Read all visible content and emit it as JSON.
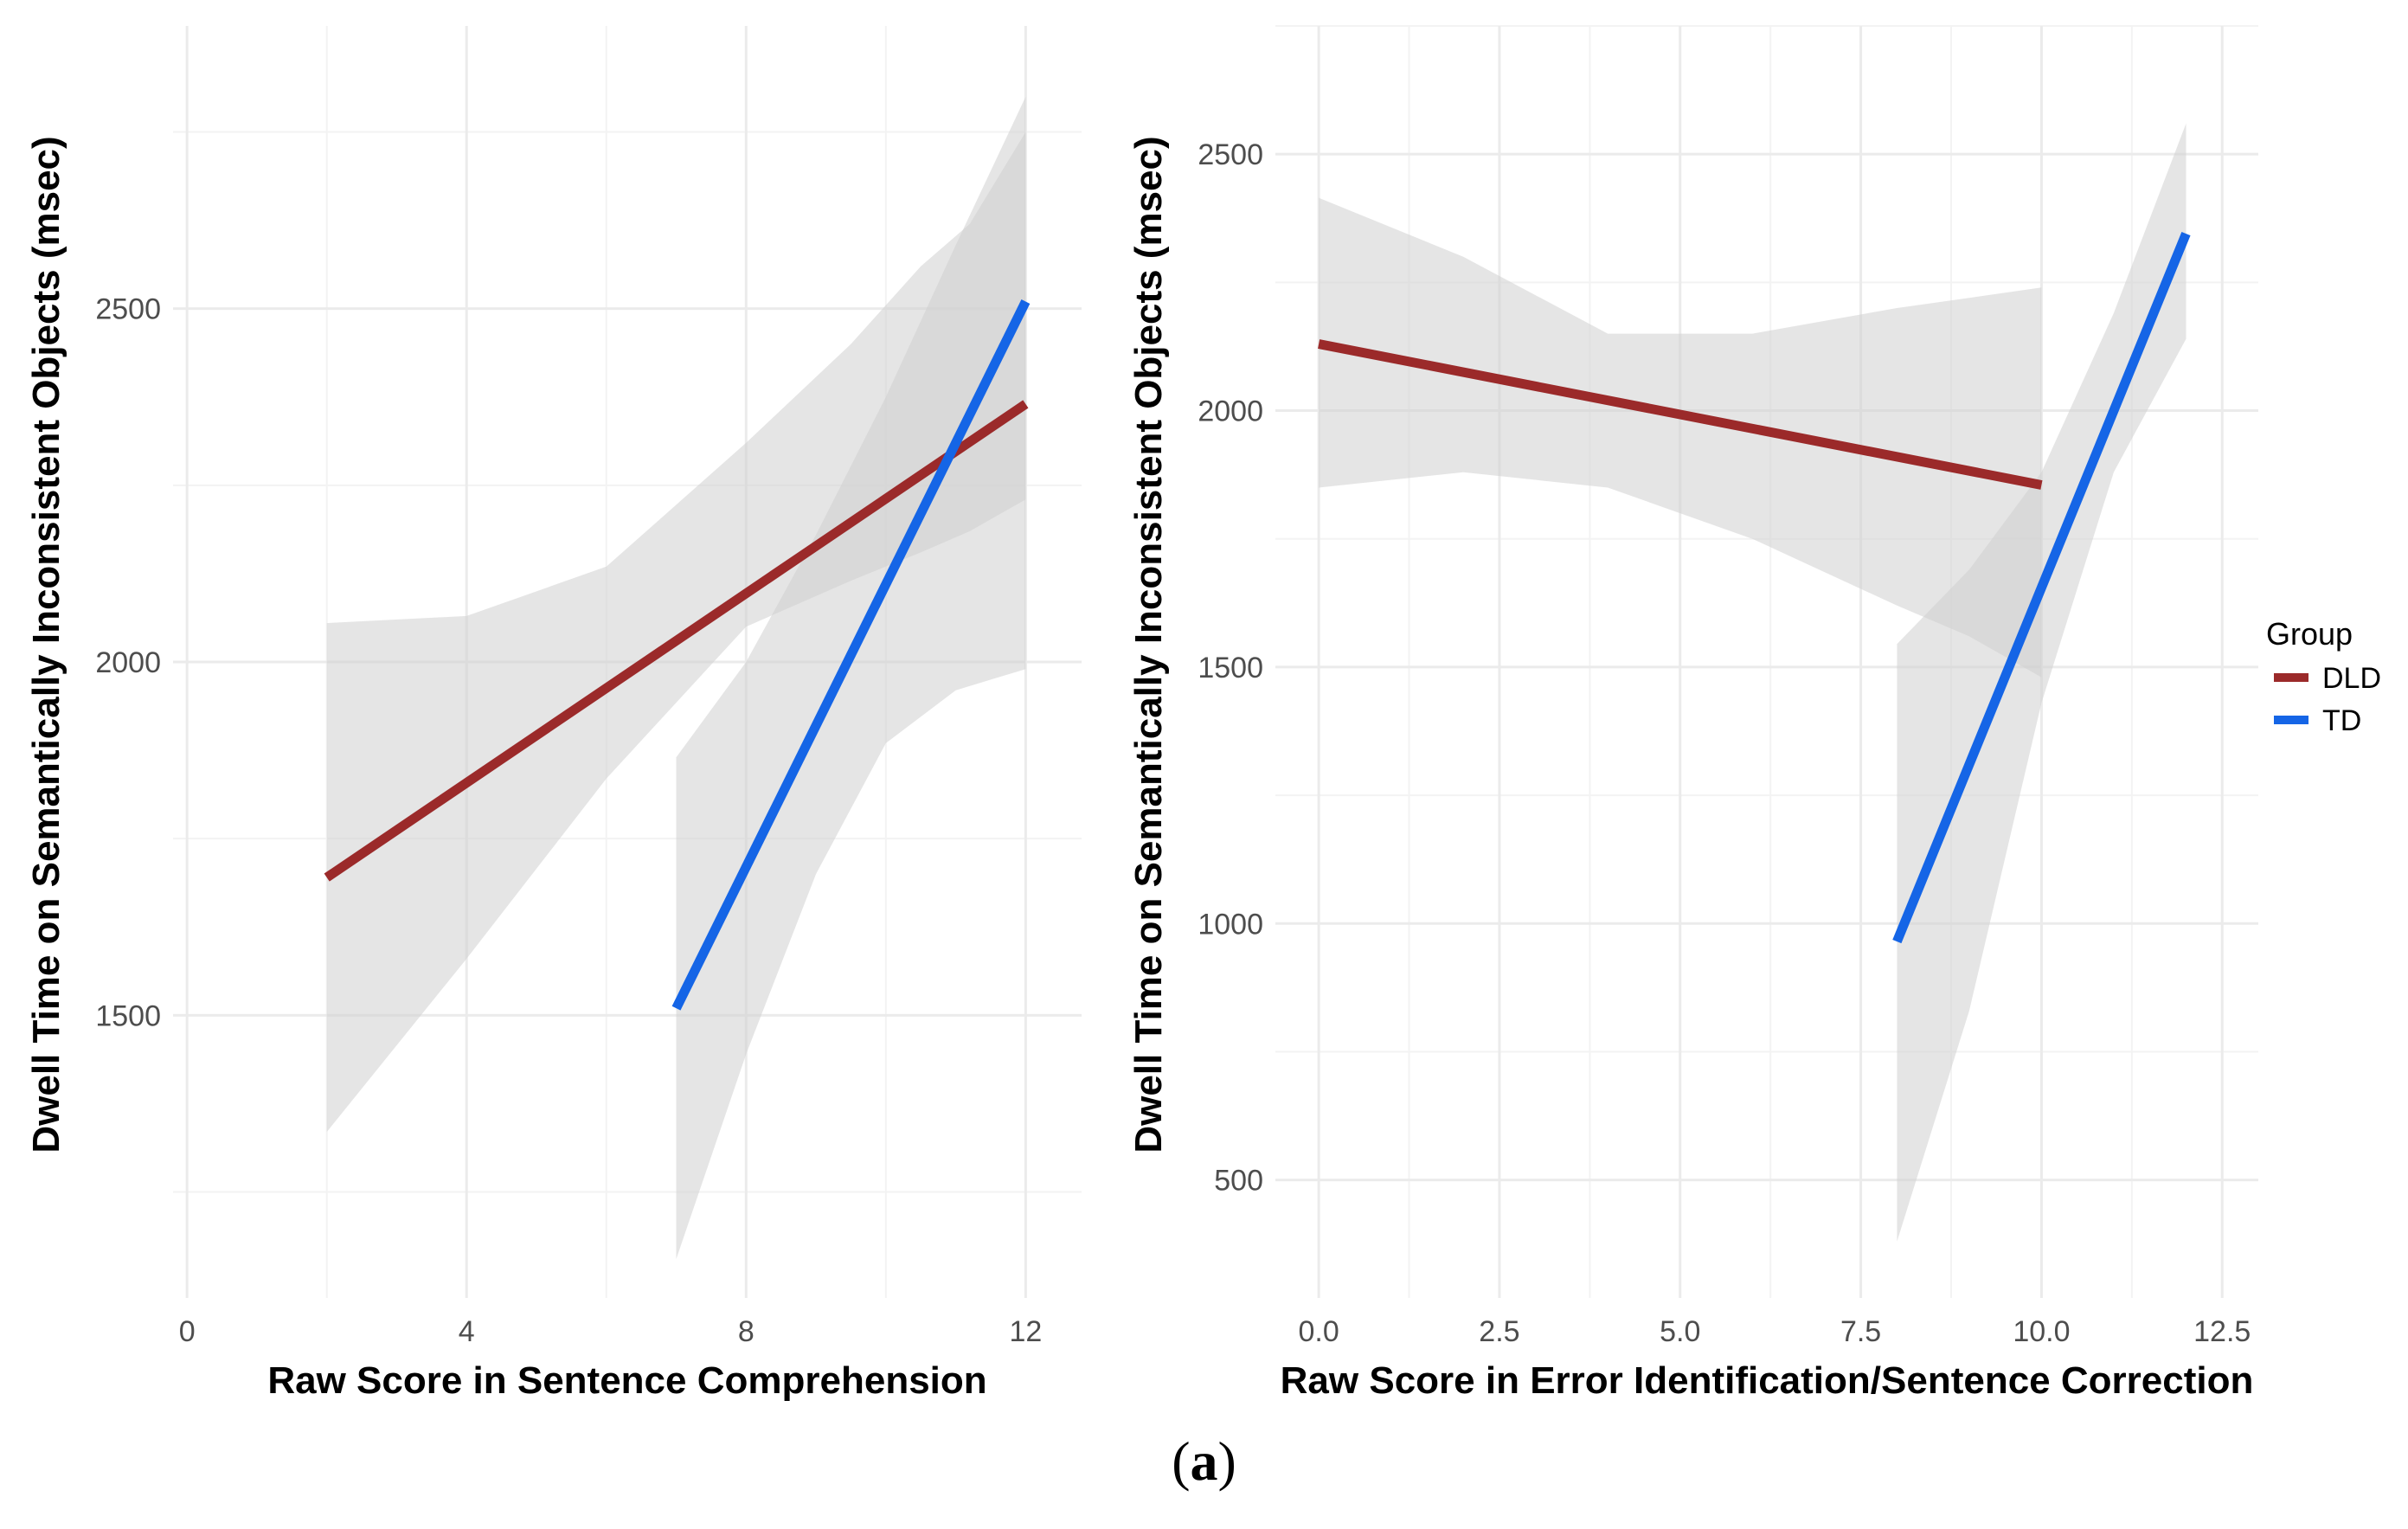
{
  "caption": {
    "open": "(",
    "letter": "a",
    "close": ")"
  },
  "colors": {
    "DLD": "#9B2A2A",
    "TD": "#1565E6",
    "ribbon": "#d9d9d9",
    "grid": "#ebebeb"
  },
  "legend": {
    "title": "Group",
    "entries": [
      {
        "label": "DLD"
      },
      {
        "label": "TD"
      }
    ]
  },
  "chart_data": [
    {
      "type": "line",
      "xlabel": "Raw Score in Sentence Comprehension",
      "ylabel": "Dwell Time on Semantically Inconsistent Objects (msec)",
      "xlim": [
        -0.2,
        12.8
      ],
      "ylim": [
        1100,
        2900
      ],
      "xticks": [
        0,
        4,
        8,
        12
      ],
      "xtick_labels": [
        "0",
        "4",
        "8",
        "12"
      ],
      "yticks": [
        1500,
        2000,
        2500
      ],
      "ytick_labels": [
        "1500",
        "2000",
        "2500"
      ],
      "series": [
        {
          "name": "DLD",
          "x": [
            2,
            12
          ],
          "y": [
            1695,
            2365
          ],
          "ci_x": [
            2,
            4,
            6,
            8,
            9.5,
            10.5,
            11.2,
            12
          ],
          "ci_low": [
            1335,
            1580,
            1835,
            2050,
            2115,
            2155,
            2185,
            2230
          ],
          "ci_high": [
            2055,
            2065,
            2135,
            2310,
            2450,
            2560,
            2620,
            2750
          ]
        },
        {
          "name": "TD",
          "x": [
            7,
            12
          ],
          "y": [
            1510,
            2510
          ],
          "ci_x": [
            7,
            8,
            9,
            10,
            11,
            12
          ],
          "ci_low": [
            1155,
            1445,
            1700,
            1885,
            1960,
            1990
          ],
          "ci_high": [
            1865,
            2000,
            2180,
            2375,
            2590,
            2800
          ]
        }
      ]
    },
    {
      "type": "line",
      "xlabel": "Raw Score in Error Identification/Sentence Correction",
      "ylabel": "Dwell Time on Semantically Inconsistent Objects (msec)",
      "xlim": [
        -0.6,
        13
      ],
      "ylim": [
        270,
        2750
      ],
      "xticks": [
        0,
        2.5,
        5,
        7.5,
        10,
        12.5
      ],
      "xtick_labels": [
        "0.0",
        "2.5",
        "5.0",
        "7.5",
        "10.0",
        "12.5"
      ],
      "yticks": [
        500,
        1000,
        1500,
        2000,
        2500
      ],
      "ytick_labels": [
        "500",
        "1000",
        "1500",
        "2000",
        "2500"
      ],
      "series": [
        {
          "name": "DLD",
          "x": [
            0,
            10
          ],
          "y": [
            2130,
            1855
          ],
          "ci_x": [
            0,
            2,
            4,
            6,
            8,
            9,
            10
          ],
          "ci_low": [
            1850,
            1880,
            1850,
            1750,
            1620,
            1560,
            1480
          ],
          "ci_high": [
            2415,
            2300,
            2150,
            2150,
            2200,
            2220,
            2240
          ]
        },
        {
          "name": "TD",
          "x": [
            8,
            12
          ],
          "y": [
            965,
            2345
          ],
          "ci_x": [
            8,
            9,
            10,
            11,
            12
          ],
          "ci_low": [
            380,
            830,
            1430,
            1880,
            2140
          ],
          "ci_high": [
            1545,
            1690,
            1880,
            2190,
            2560
          ]
        }
      ]
    }
  ]
}
